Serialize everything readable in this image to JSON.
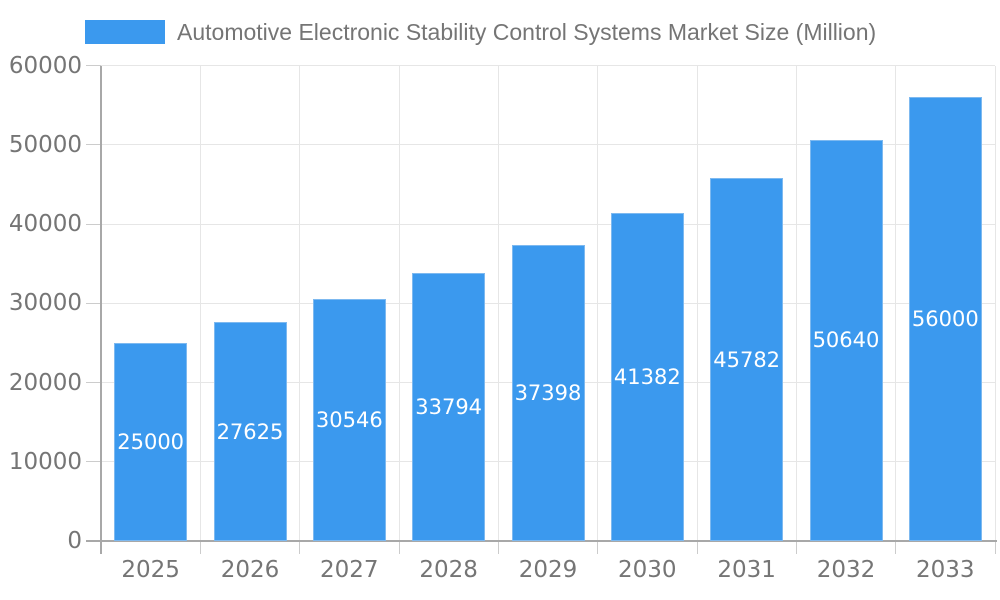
{
  "chart_data": {
    "type": "bar",
    "title": "Automotive Electronic Stability Control Systems Market Size (Million)",
    "legend_position": "top",
    "categories": [
      "2025",
      "2026",
      "2027",
      "2028",
      "2029",
      "2030",
      "2031",
      "2032",
      "2033"
    ],
    "values": [
      25000,
      27625,
      30546,
      33794,
      37398,
      41382,
      45782,
      50640,
      56000
    ],
    "value_labels": [
      "25000",
      "27625",
      "30546",
      "33794",
      "37398",
      "41382",
      "45782",
      "50640",
      "56000"
    ],
    "xlabel": "",
    "ylabel": "",
    "ylim": [
      0,
      60000
    ],
    "yticks": [
      0,
      10000,
      20000,
      30000,
      40000,
      50000,
      60000
    ],
    "ytick_labels": [
      "0",
      "10000",
      "20000",
      "30000",
      "40000",
      "50000",
      "60000"
    ],
    "grid": true,
    "colors": {
      "bar": "#3B99EE",
      "bar_border": "#7DB9F0",
      "bar_label": "#FFFFFF",
      "axis_text": "#757575",
      "axis_line": "#A8A8A8",
      "gridline": "#E6E6E6",
      "tick": "#CCCCCC",
      "background": "#FFFFFF"
    }
  }
}
